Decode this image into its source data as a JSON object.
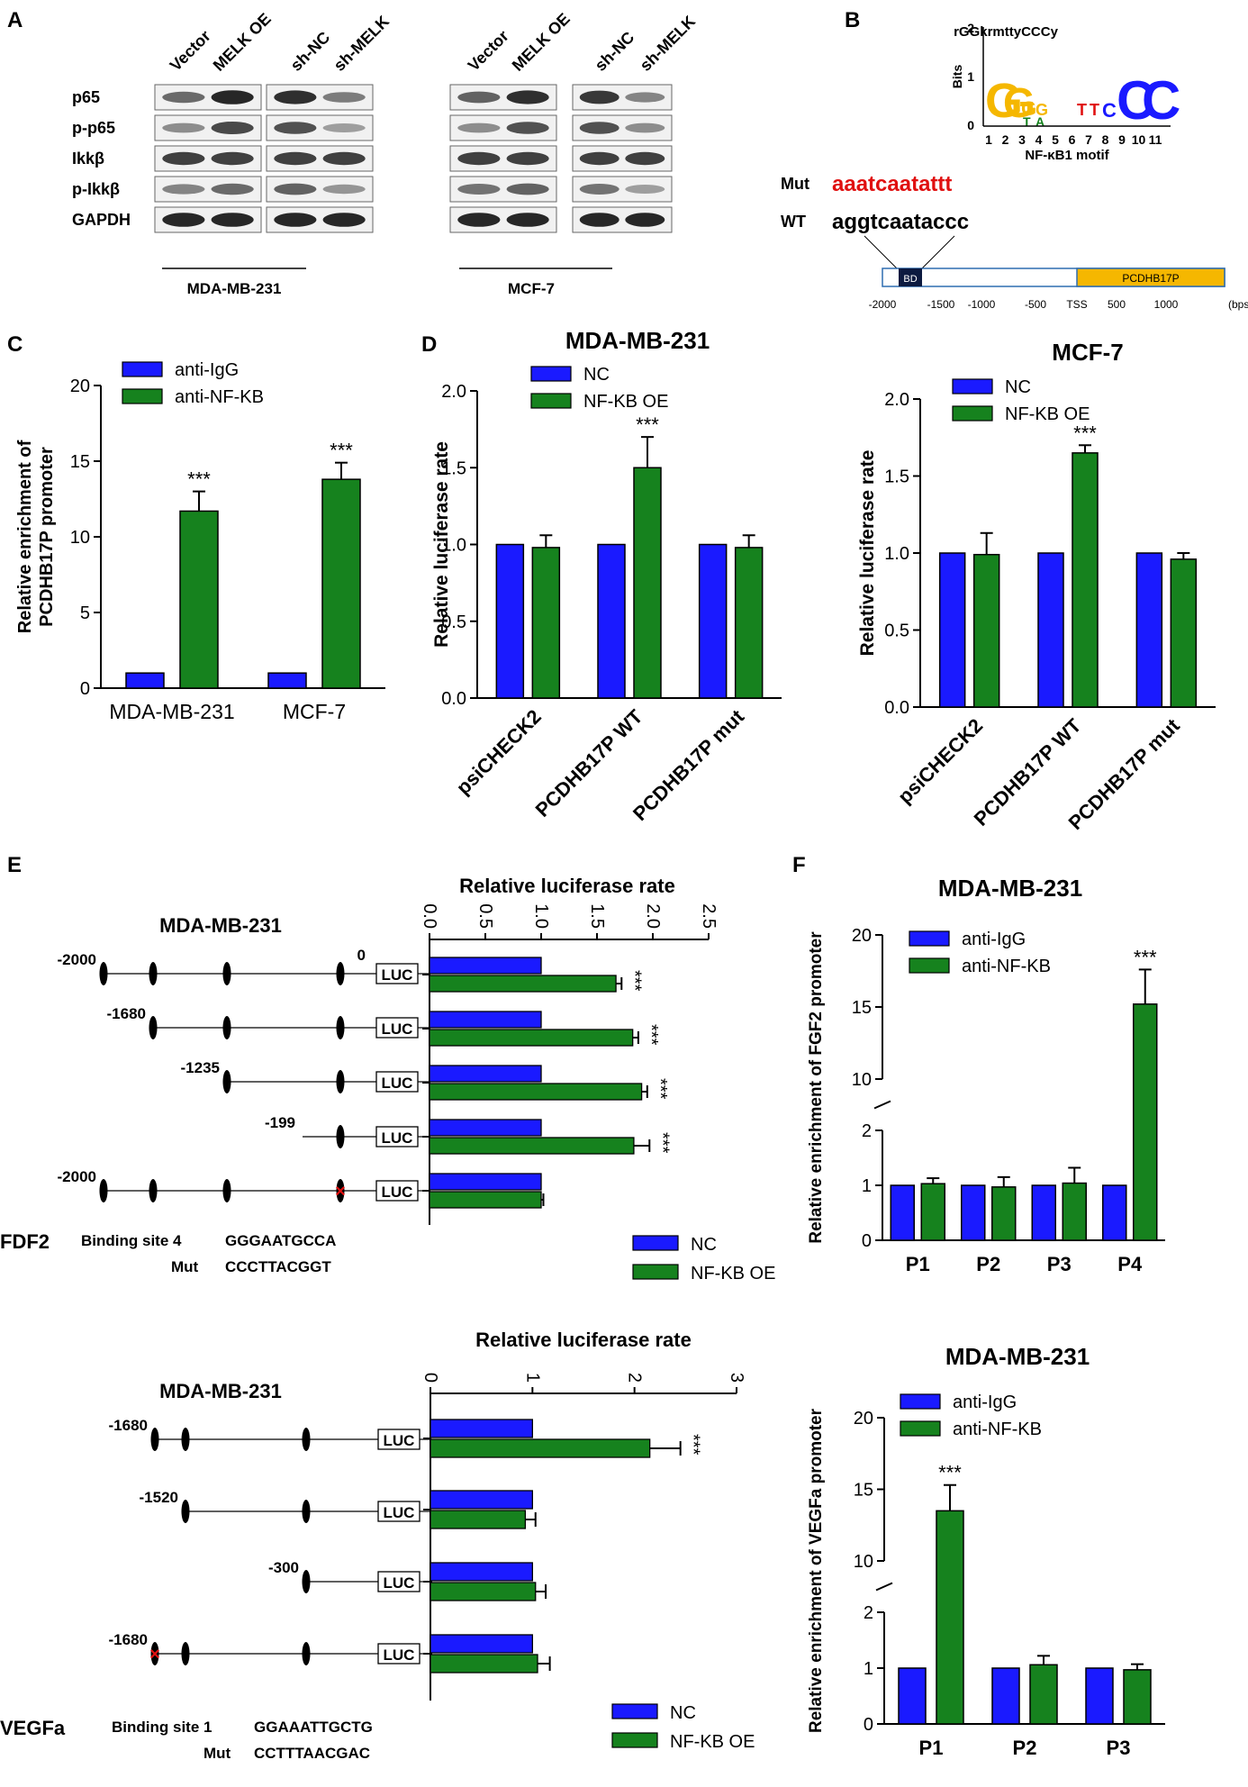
{
  "colors": {
    "blue": "#1a1aff",
    "green": "#16821e",
    "red": "#e01010",
    "gold": "#f5b700"
  },
  "panel_letters": [
    "A",
    "B",
    "C",
    "D",
    "E",
    "F"
  ],
  "panelA": {
    "columns_231_oe": [
      "Vector",
      "MELK OE"
    ],
    "columns_231_sh": [
      "sh-NC",
      "sh-MELK"
    ],
    "columns_mcf_oe": [
      "Vector",
      "MELK OE"
    ],
    "columns_mcf_sh": [
      "sh-NC",
      "sh-MELK"
    ],
    "rows": [
      "p65",
      "p-p65",
      "Ikkβ",
      "p-Ikkβ",
      "GAPDH"
    ],
    "cell_line_left": "MDA-MB-231",
    "cell_line_right": "MCF-7"
  },
  "panelB": {
    "consensus": "rGGkrmttyCCCy",
    "ylabel": "Bits",
    "yticks": [
      "2",
      "1",
      "0"
    ],
    "positions": [
      "1",
      "2",
      "3",
      "4",
      "5",
      "6",
      "7",
      "8",
      "9",
      "10",
      "11"
    ],
    "motif_label": "NF-κB1 motif",
    "mut_label": "Mut",
    "mut_seq": "aaatcaatattt",
    "wt_label": "WT",
    "wt_seq": "aggtcaataccc",
    "bd_label": "BD",
    "gene_label": "PCDHB17P",
    "scale_ticks": [
      "-2000",
      "-1500",
      "-1000",
      "-500",
      "TSS",
      "500",
      "1000"
    ],
    "scale_unit": "(bps)"
  },
  "chart_data": [
    {
      "id": "C",
      "type": "bar",
      "title": "",
      "ylabel": "Relative enrichment of PCDHB17P promoter",
      "categories": [
        "MDA-MB-231",
        "MCF-7"
      ],
      "series": [
        {
          "name": "anti-IgG",
          "values": [
            1,
            1
          ],
          "errors": [
            0,
            0
          ]
        },
        {
          "name": "anti-NF-KB",
          "values": [
            11.7,
            13.8
          ],
          "errors": [
            1.3,
            1.1
          ]
        }
      ],
      "ylim": [
        0,
        20
      ],
      "yticks": [
        "0",
        "5",
        "10",
        "15",
        "20"
      ],
      "significance": [
        "***",
        "***"
      ]
    },
    {
      "id": "D1",
      "type": "bar",
      "title": "MDA-MB-231",
      "ylabel": "Relative luciferase rate",
      "categories": [
        "psiCHECK2",
        "PCDHB17P WT",
        "PCDHB17P mut"
      ],
      "series": [
        {
          "name": "NC",
          "values": [
            1.0,
            1.0,
            1.0
          ],
          "errors": [
            0,
            0,
            0
          ]
        },
        {
          "name": "NF-KB OE",
          "values": [
            0.98,
            1.5,
            0.98
          ],
          "errors": [
            0.08,
            0.2,
            0.08
          ]
        }
      ],
      "ylim": [
        0,
        2
      ],
      "yticks": [
        "0.0",
        "0.5",
        "1.0",
        "1.5",
        "2.0"
      ],
      "significance": [
        "",
        "***",
        ""
      ]
    },
    {
      "id": "D2",
      "type": "bar",
      "title": "MCF-7",
      "ylabel": "Relative luciferase rate",
      "categories": [
        "psiCHECK2",
        "PCDHB17P WT",
        "PCDHB17P mut"
      ],
      "series": [
        {
          "name": "NC",
          "values": [
            1.0,
            1.0,
            1.0
          ],
          "errors": [
            0,
            0,
            0
          ]
        },
        {
          "name": "NF-KB OE",
          "values": [
            0.99,
            1.65,
            0.96
          ],
          "errors": [
            0.14,
            0.05,
            0.04
          ]
        }
      ],
      "ylim": [
        0,
        2
      ],
      "yticks": [
        "0.0",
        "0.5",
        "1.0",
        "1.5",
        "2.0"
      ],
      "significance": [
        "",
        "***",
        ""
      ]
    },
    {
      "id": "E1",
      "type": "bar",
      "orientation": "horizontal",
      "title": "Relative luciferase rate",
      "cell_line": "MDA-MB-231",
      "categories": [
        "-2000",
        "-1680",
        "-1235",
        "-199",
        "-2000 mut"
      ],
      "series": [
        {
          "name": "NC",
          "values": [
            1.0,
            1.0,
            1.0,
            1.0,
            1.0
          ],
          "errors": [
            0,
            0,
            0,
            0,
            0
          ]
        },
        {
          "name": "NF-KB OE",
          "values": [
            1.67,
            1.82,
            1.9,
            1.83,
            1.0
          ],
          "errors": [
            0.05,
            0.05,
            0.05,
            0.14,
            0.02
          ]
        }
      ],
      "xlim": [
        0,
        2.5
      ],
      "xticks": [
        "0.0",
        "0.5",
        "1.0",
        "1.5",
        "2.0",
        "2.5"
      ],
      "significance": [
        "***",
        "***",
        "***",
        "***",
        ""
      ]
    },
    {
      "id": "E2",
      "type": "bar",
      "orientation": "horizontal",
      "title": "Relative luciferase rate",
      "cell_line": "MDA-MB-231",
      "categories": [
        "-1680",
        "-1520",
        "-300",
        "-1680 mut"
      ],
      "series": [
        {
          "name": "NC",
          "values": [
            1.0,
            1.0,
            1.0,
            1.0
          ],
          "errors": [
            0,
            0,
            0,
            0
          ]
        },
        {
          "name": "NF-KB OE",
          "values": [
            2.15,
            0.93,
            1.03,
            1.05
          ],
          "errors": [
            0.3,
            0.1,
            0.1,
            0.12
          ]
        }
      ],
      "xlim": [
        0,
        3
      ],
      "xticks": [
        "0",
        "1",
        "2",
        "3"
      ],
      "significance": [
        "***",
        "",
        "",
        ""
      ]
    },
    {
      "id": "F1",
      "type": "bar",
      "title": "MDA-MB-231",
      "ylabel": "Relative enrichment of FGF2 promoter",
      "categories": [
        "P1",
        "P2",
        "P3",
        "P4"
      ],
      "series": [
        {
          "name": "anti-IgG",
          "values": [
            1,
            1,
            1,
            1
          ],
          "errors": [
            0,
            0,
            0,
            0
          ]
        },
        {
          "name": "anti-NF-KB",
          "values": [
            1.03,
            0.97,
            1.04,
            15.2
          ],
          "errors": [
            0.1,
            0.18,
            0.28,
            2.4
          ]
        }
      ],
      "axis_break": [
        2,
        10
      ],
      "yticks_lower": [
        "0",
        "1",
        "2"
      ],
      "yticks_upper": [
        "10",
        "15",
        "20"
      ],
      "significance": [
        "",
        "",
        "",
        "***"
      ]
    },
    {
      "id": "F2",
      "type": "bar",
      "title": "MDA-MB-231",
      "ylabel": "Relative enrichment of VEGFa promoter",
      "categories": [
        "P1",
        "P2",
        "P3"
      ],
      "series": [
        {
          "name": "anti-IgG",
          "values": [
            1,
            1,
            1
          ],
          "errors": [
            0,
            0,
            0
          ]
        },
        {
          "name": "anti-NF-KB",
          "values": [
            13.5,
            1.06,
            0.97
          ],
          "errors": [
            1.8,
            0.16,
            0.1
          ]
        }
      ],
      "axis_break": [
        2,
        10
      ],
      "yticks_lower": [
        "0",
        "1",
        "2"
      ],
      "yticks_upper": [
        "10",
        "15",
        "20"
      ],
      "significance": [
        "***",
        "",
        ""
      ]
    }
  ],
  "panelE": {
    "top_starts": [
      "-2000",
      "-1680",
      "-1235",
      "-199",
      "-2000"
    ],
    "top_zero": "0",
    "bottom_starts": [
      "-1680",
      "-1520",
      "-300",
      "-1680"
    ],
    "luc": "LUC",
    "fdf2_gene": "FDF2",
    "fdf2_site": "Binding site 4",
    "fdf2_wt": "GGGAATGCCA",
    "fdf2_mut_label": "Mut",
    "fdf2_mut": "CCCTTACGGT",
    "vegfa_gene": "VEGFa",
    "vegfa_site": "Binding site 1",
    "vegfa_wt": "GGAAATTGCTG",
    "vegfa_mut_label": "Mut",
    "vegfa_mut": "CCTTTAACGAC"
  }
}
